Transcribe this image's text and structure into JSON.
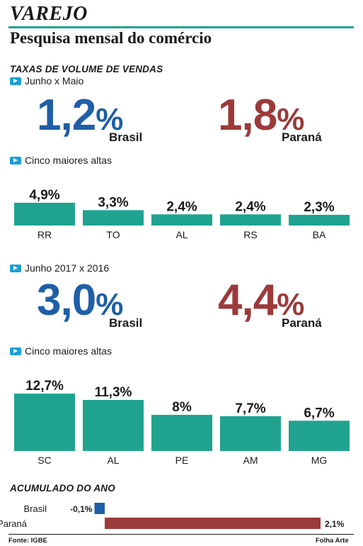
{
  "kicker": "VAREJO",
  "headline": "Pesquisa mensal do comércio",
  "section1_title": "TAXAS DE VOLUME DE VENDAS",
  "monthly": {
    "label": "Junho x Maio",
    "brasil_value": "1,2",
    "parana_value": "1,8",
    "brasil_label": "Brasil",
    "parana_label": "Paraná",
    "top5_label": "Cinco maiores altas"
  },
  "yearly": {
    "label": "Junho 2017 x 2016",
    "brasil_value": "3,0",
    "parana_value": "4,4",
    "brasil_label": "Brasil",
    "parana_label": "Paraná",
    "top5_label": "Cinco maiores altas"
  },
  "percent_sign": "%",
  "accum_title": "ACUMULADO DO ANO",
  "source": "Fonte: IGBE",
  "credit": "Folha Arte",
  "colors": {
    "bar": "#1fa38f",
    "brasil": "#1f5fa8",
    "parana": "#9b3a3a"
  },
  "chart_data": [
    {
      "type": "bar",
      "categories": [
        "RR",
        "TO",
        "AL",
        "RS",
        "BA"
      ],
      "values": [
        4.9,
        3.3,
        2.4,
        2.4,
        2.3
      ],
      "value_labels": [
        "4,9%",
        "3,3%",
        "2,4%",
        "2,4%",
        "2,3%"
      ],
      "ylim": [
        0,
        5.5
      ]
    },
    {
      "type": "bar",
      "categories": [
        "SC",
        "AL",
        "PE",
        "AM",
        "MG"
      ],
      "values": [
        12.7,
        11.3,
        8,
        7.7,
        6.7
      ],
      "value_labels": [
        "12,7%",
        "11,3%",
        "8%",
        "7,7%",
        "6,7%"
      ],
      "ylim": [
        0,
        13.5
      ]
    },
    {
      "type": "bar",
      "orientation": "horizontal",
      "categories": [
        "Brasil",
        "Paraná"
      ],
      "values": [
        -0.1,
        2.1
      ],
      "value_labels": [
        "-0,1%",
        "2,1%"
      ],
      "xlim": [
        -0.1,
        2.1
      ]
    }
  ]
}
